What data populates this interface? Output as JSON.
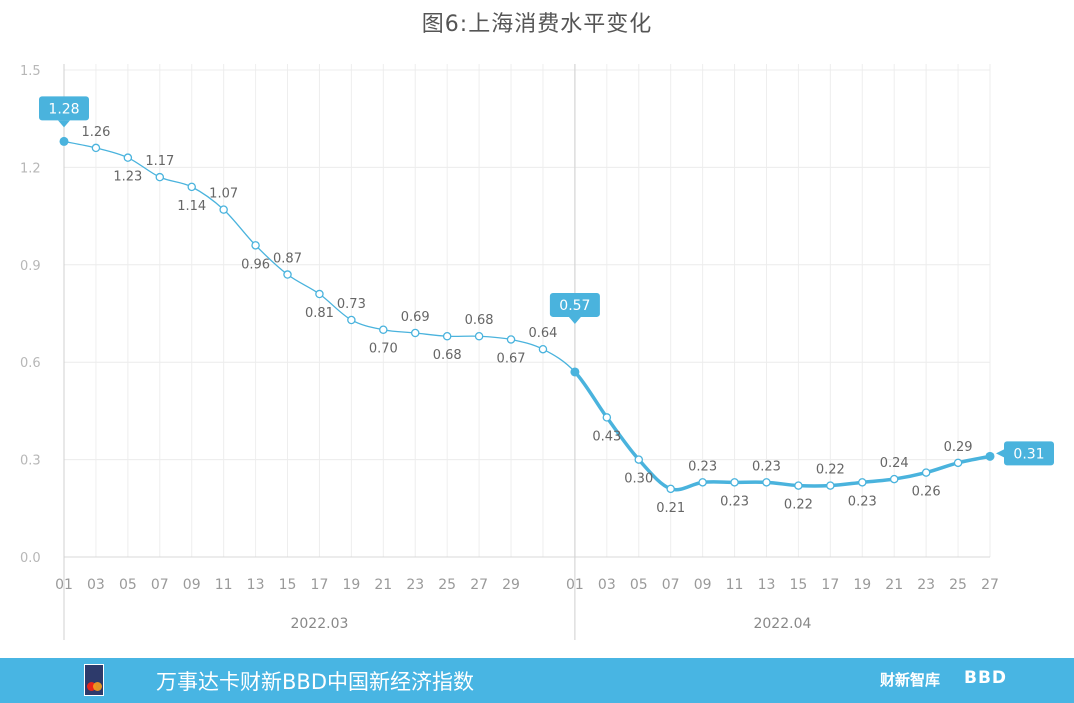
{
  "title": "图6:上海消费水平变化",
  "chart_data": {
    "type": "line",
    "title": "图6:上海消费水平变化",
    "xlabel": "",
    "ylabel": "",
    "ylim": [
      0,
      1.5
    ],
    "yticks": [
      "0.0",
      "0.3",
      "0.6",
      "0.9",
      "1.2",
      "1.5"
    ],
    "grid": true,
    "months": [
      "2022.03",
      "2022.04"
    ],
    "x_tick_labels": [
      "01",
      "03",
      "05",
      "07",
      "09",
      "11",
      "13",
      "15",
      "17",
      "19",
      "21",
      "23",
      "25",
      "27",
      "29",
      "01",
      "03",
      "05",
      "07",
      "09",
      "11",
      "13",
      "15",
      "17",
      "19",
      "21",
      "23",
      "25",
      "27"
    ],
    "x": [
      "03-01",
      "03-03",
      "03-05",
      "03-07",
      "03-09",
      "03-11",
      "03-13",
      "03-15",
      "03-17",
      "03-19",
      "03-21",
      "03-23",
      "03-25",
      "03-27",
      "03-29",
      "03-31",
      "04-01",
      "04-03",
      "04-05",
      "04-07",
      "04-09",
      "04-11",
      "04-13",
      "04-15",
      "04-17",
      "04-19",
      "04-21",
      "04-23",
      "04-25",
      "04-27"
    ],
    "values": [
      1.28,
      1.26,
      1.23,
      1.17,
      1.14,
      1.07,
      0.96,
      0.87,
      0.81,
      0.73,
      0.7,
      0.69,
      0.68,
      0.68,
      0.67,
      0.64,
      0.57,
      0.43,
      0.3,
      0.21,
      0.23,
      0.23,
      0.23,
      0.22,
      0.22,
      0.23,
      0.24,
      0.26,
      0.29,
      0.31
    ],
    "data_labels": [
      "",
      "1.26",
      "1.23",
      "1.17",
      "1.14",
      "1.07",
      "0.96",
      "0.87",
      "0.81",
      "0.73",
      "0.70",
      "0.69",
      "0.68",
      "0.68",
      "0.67",
      "0.64",
      "",
      "0.43",
      "0.30",
      "0.21",
      "0.23",
      "0.23",
      "0.23",
      "0.22",
      "0.22",
      "0.23",
      "0.24",
      "0.26",
      "0.29",
      ""
    ],
    "label_side": [
      "",
      "up",
      "down",
      "up",
      "down",
      "up",
      "down",
      "up",
      "down",
      "up",
      "down",
      "up",
      "down",
      "up",
      "down",
      "up",
      "",
      "down",
      "down",
      "down",
      "up",
      "down",
      "up",
      "down",
      "up",
      "down",
      "up",
      "down",
      "up",
      ""
    ],
    "callouts": [
      {
        "index": 0,
        "text": "1.28"
      },
      {
        "index": 16,
        "text": "0.57"
      },
      {
        "index": 29,
        "text": "0.31"
      }
    ],
    "color": "#4ab3dd"
  },
  "footer": {
    "title": "万事达卡财新BBD中国新经济指数",
    "brand_left": "财新智库",
    "brand_right": "BBD"
  }
}
